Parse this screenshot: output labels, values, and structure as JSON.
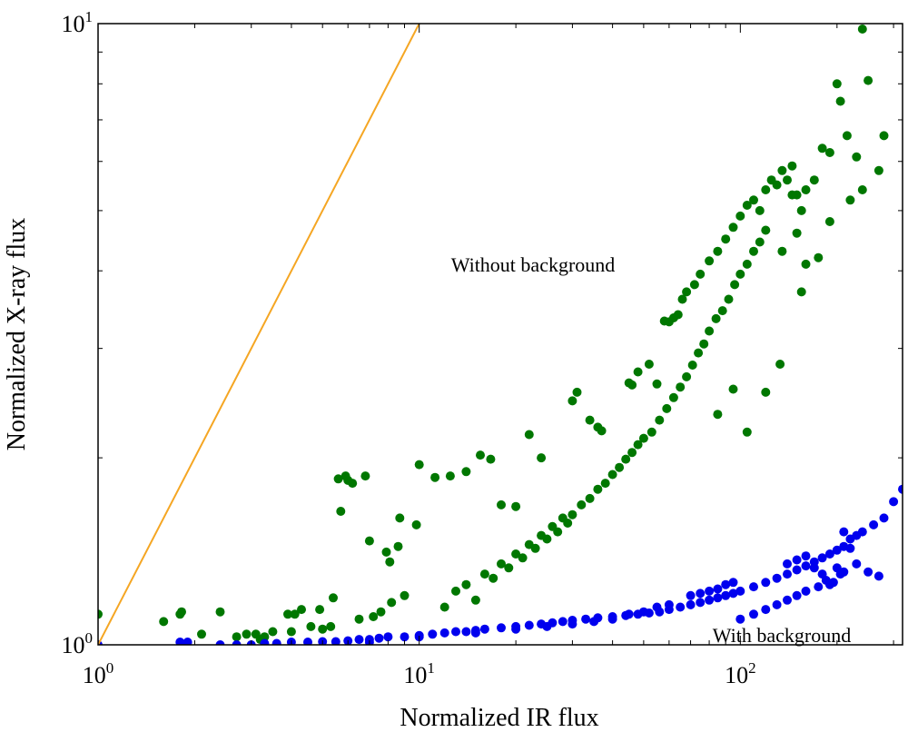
{
  "chart_data": {
    "type": "scatter",
    "xscale": "log",
    "yscale": "log",
    "xlim": [
      1,
      320
    ],
    "ylim": [
      1,
      10
    ],
    "xlabel": "Normalized IR flux",
    "ylabel": "Normalized X-ray flux",
    "x_ticks": [
      {
        "value": 1,
        "base": "10",
        "exp": "0"
      },
      {
        "value": 10,
        "base": "10",
        "exp": "1"
      },
      {
        "value": 100,
        "base": "10",
        "exp": "2"
      }
    ],
    "y_ticks": [
      {
        "value": 1,
        "base": "10",
        "exp": "0"
      },
      {
        "value": 10,
        "base": "10",
        "exp": "1"
      }
    ],
    "reference_line": {
      "color": "#f5a623",
      "x": [
        1,
        10
      ],
      "y": [
        1,
        10
      ]
    },
    "annotations": [
      {
        "name": "without-background-label",
        "text": "Without background",
        "x": 24,
        "y": 4.1
      },
      {
        "name": "with-background-label",
        "text": "With background",
        "x": 140,
        "y": 1.012
      }
    ],
    "series": [
      {
        "color": "#007700",
        "points": [
          [
            1.0,
            1.12
          ],
          [
            1.8,
            1.12
          ],
          [
            1.82,
            1.13
          ],
          [
            2.4,
            1.13
          ],
          [
            1.6,
            1.09
          ],
          [
            2.1,
            1.04
          ],
          [
            2.7,
            1.03
          ],
          [
            2.9,
            1.04
          ],
          [
            3.1,
            1.04
          ],
          [
            3.3,
            1.03
          ],
          [
            3.5,
            1.05
          ],
          [
            3.2,
            1.02
          ],
          [
            5.7,
            1.64
          ],
          [
            5.6,
            1.85
          ],
          [
            6.0,
            1.84
          ],
          [
            6.2,
            1.82
          ],
          [
            5.9,
            1.87
          ],
          [
            6.8,
            1.87
          ],
          [
            3.9,
            1.12
          ],
          [
            4.1,
            1.12
          ],
          [
            4.3,
            1.14
          ],
          [
            4.9,
            1.14
          ],
          [
            5.4,
            1.19
          ],
          [
            4.6,
            1.07
          ],
          [
            4.0,
            1.05
          ],
          [
            5.0,
            1.06
          ],
          [
            5.3,
            1.07
          ],
          [
            6.5,
            1.1
          ],
          [
            7.2,
            1.11
          ],
          [
            7.6,
            1.13
          ],
          [
            8.2,
            1.17
          ],
          [
            9.0,
            1.2
          ],
          [
            8.6,
            1.44
          ],
          [
            9.8,
            1.56
          ],
          [
            8.7,
            1.6
          ],
          [
            7.0,
            1.47
          ],
          [
            8.1,
            1.36
          ],
          [
            7.9,
            1.41
          ],
          [
            10.0,
            1.95
          ],
          [
            11.2,
            1.86
          ],
          [
            12.5,
            1.87
          ],
          [
            14.0,
            1.9
          ],
          [
            15.5,
            2.02
          ],
          [
            16.7,
            1.99
          ],
          [
            18.0,
            1.68
          ],
          [
            20.0,
            1.67
          ],
          [
            22.0,
            2.18
          ],
          [
            24.0,
            2.0
          ],
          [
            30.0,
            2.47
          ],
          [
            31.0,
            2.55
          ],
          [
            34.0,
            2.3
          ],
          [
            36.0,
            2.24
          ],
          [
            37.0,
            2.21
          ],
          [
            45.0,
            2.64
          ],
          [
            46.0,
            2.62
          ],
          [
            48.0,
            2.75
          ],
          [
            52.0,
            2.83
          ],
          [
            55.0,
            2.63
          ],
          [
            58.0,
            3.32
          ],
          [
            60.0,
            3.31
          ],
          [
            62.0,
            3.36
          ],
          [
            64.0,
            3.4
          ],
          [
            66.0,
            3.6
          ],
          [
            68.0,
            3.7
          ],
          [
            72.0,
            3.8
          ],
          [
            75.0,
            3.95
          ],
          [
            80.0,
            4.15
          ],
          [
            85.0,
            4.3
          ],
          [
            90.0,
            4.5
          ],
          [
            95.0,
            4.7
          ],
          [
            100.0,
            4.9
          ],
          [
            105.0,
            5.1
          ],
          [
            110.0,
            5.2
          ],
          [
            115.0,
            5.0
          ],
          [
            120.0,
            5.4
          ],
          [
            125.0,
            5.6
          ],
          [
            130.0,
            5.5
          ],
          [
            135.0,
            5.8
          ],
          [
            140.0,
            5.6
          ],
          [
            145.0,
            5.9
          ],
          [
            150.0,
            5.3
          ],
          [
            155.0,
            5.0
          ],
          [
            160.0,
            5.4
          ],
          [
            170.0,
            5.6
          ],
          [
            180.0,
            6.3
          ],
          [
            190.0,
            6.2
          ],
          [
            200.0,
            8.0
          ],
          [
            205.0,
            7.5
          ],
          [
            215.0,
            6.6
          ],
          [
            230.0,
            6.1
          ],
          [
            240.0,
            9.8
          ],
          [
            250.0,
            8.1
          ],
          [
            270.0,
            5.8
          ],
          [
            280.0,
            6.6
          ],
          [
            155.0,
            3.7
          ],
          [
            133.0,
            2.83
          ],
          [
            120.0,
            2.55
          ],
          [
            105.0,
            2.2
          ],
          [
            95.0,
            2.58
          ],
          [
            85.0,
            2.35
          ],
          [
            145.0,
            5.3
          ],
          [
            160.0,
            4.1
          ],
          [
            135.0,
            4.3
          ],
          [
            150.0,
            4.6
          ],
          [
            175.0,
            4.2
          ],
          [
            190.0,
            4.8
          ],
          [
            220.0,
            5.2
          ],
          [
            240.0,
            5.4
          ],
          [
            12.0,
            1.15
          ],
          [
            13.0,
            1.22
          ],
          [
            14.0,
            1.25
          ],
          [
            15.0,
            1.18
          ],
          [
            16.0,
            1.3
          ],
          [
            17.0,
            1.28
          ],
          [
            18.0,
            1.35
          ],
          [
            19.0,
            1.33
          ],
          [
            20.0,
            1.4
          ],
          [
            21.0,
            1.38
          ],
          [
            22.0,
            1.45
          ],
          [
            23.0,
            1.43
          ],
          [
            24.0,
            1.5
          ],
          [
            25.0,
            1.48
          ],
          [
            26.0,
            1.55
          ],
          [
            27.0,
            1.52
          ],
          [
            28.0,
            1.6
          ],
          [
            29.0,
            1.57
          ],
          [
            30.0,
            1.62
          ],
          [
            32.0,
            1.68
          ],
          [
            34.0,
            1.72
          ],
          [
            36.0,
            1.78
          ],
          [
            38.0,
            1.82
          ],
          [
            40.0,
            1.88
          ],
          [
            42.0,
            1.93
          ],
          [
            44.0,
            1.99
          ],
          [
            46.0,
            2.04
          ],
          [
            48.0,
            2.1
          ],
          [
            50.0,
            2.15
          ],
          [
            53.0,
            2.2
          ],
          [
            56.0,
            2.3
          ],
          [
            59.0,
            2.4
          ],
          [
            62.0,
            2.5
          ],
          [
            65.0,
            2.6
          ],
          [
            68.0,
            2.7
          ],
          [
            71.0,
            2.82
          ],
          [
            74.0,
            2.95
          ],
          [
            77.0,
            3.05
          ],
          [
            80.0,
            3.2
          ],
          [
            84.0,
            3.35
          ],
          [
            88.0,
            3.45
          ],
          [
            92.0,
            3.6
          ],
          [
            96.0,
            3.8
          ],
          [
            100.0,
            3.95
          ],
          [
            105.0,
            4.1
          ],
          [
            110.0,
            4.3
          ],
          [
            115.0,
            4.45
          ],
          [
            120.0,
            4.65
          ]
        ]
      },
      {
        "color": "#0000ee",
        "points": [
          [
            1.0,
            1.0
          ],
          [
            1.8,
            1.01
          ],
          [
            1.9,
            1.01
          ],
          [
            2.4,
            1.0
          ],
          [
            2.7,
            1.0
          ],
          [
            3.0,
            1.0
          ],
          [
            3.3,
            1.005
          ],
          [
            3.6,
            1.005
          ],
          [
            4.0,
            1.01
          ],
          [
            4.5,
            1.01
          ],
          [
            5.0,
            1.012
          ],
          [
            5.5,
            1.012
          ],
          [
            6.0,
            1.015
          ],
          [
            6.5,
            1.02
          ],
          [
            7.0,
            1.02
          ],
          [
            7.5,
            1.025
          ],
          [
            8.0,
            1.03
          ],
          [
            9.0,
            1.03
          ],
          [
            10.0,
            1.035
          ],
          [
            11.0,
            1.04
          ],
          [
            12.0,
            1.045
          ],
          [
            13.0,
            1.05
          ],
          [
            14.0,
            1.05
          ],
          [
            15.0,
            1.055
          ],
          [
            16.0,
            1.06
          ],
          [
            18.0,
            1.065
          ],
          [
            20.0,
            1.07
          ],
          [
            22.0,
            1.075
          ],
          [
            24.0,
            1.08
          ],
          [
            26.0,
            1.085
          ],
          [
            28.0,
            1.09
          ],
          [
            30.0,
            1.095
          ],
          [
            33.0,
            1.1
          ],
          [
            36.0,
            1.105
          ],
          [
            40.0,
            1.11
          ],
          [
            44.0,
            1.115
          ],
          [
            48.0,
            1.12
          ],
          [
            52.0,
            1.125
          ],
          [
            56.0,
            1.13
          ],
          [
            60.0,
            1.14
          ],
          [
            65.0,
            1.15
          ],
          [
            70.0,
            1.16
          ],
          [
            75.0,
            1.17
          ],
          [
            80.0,
            1.18
          ],
          [
            85.0,
            1.19
          ],
          [
            90.0,
            1.2
          ],
          [
            95.0,
            1.21
          ],
          [
            100.0,
            1.22
          ],
          [
            110.0,
            1.24
          ],
          [
            120.0,
            1.26
          ],
          [
            130.0,
            1.28
          ],
          [
            140.0,
            1.3
          ],
          [
            150.0,
            1.32
          ],
          [
            160.0,
            1.34
          ],
          [
            170.0,
            1.36
          ],
          [
            180.0,
            1.38
          ],
          [
            190.0,
            1.4
          ],
          [
            200.0,
            1.42
          ],
          [
            210.0,
            1.44
          ],
          [
            220.0,
            1.48
          ],
          [
            230.0,
            1.5
          ],
          [
            240.0,
            1.52
          ],
          [
            260.0,
            1.56
          ],
          [
            280.0,
            1.6
          ],
          [
            300.0,
            1.7
          ],
          [
            320.0,
            1.78
          ],
          [
            200.0,
            1.33
          ],
          [
            210.0,
            1.31
          ],
          [
            230.0,
            1.35
          ],
          [
            250.0,
            1.31
          ],
          [
            270.0,
            1.29
          ],
          [
            190.0,
            1.25
          ],
          [
            100.0,
            1.1
          ],
          [
            110.0,
            1.12
          ],
          [
            120.0,
            1.14
          ],
          [
            130.0,
            1.16
          ],
          [
            140.0,
            1.18
          ],
          [
            150.0,
            1.2
          ],
          [
            160.0,
            1.22
          ],
          [
            175.0,
            1.24
          ],
          [
            185.0,
            1.27
          ],
          [
            195.0,
            1.26
          ],
          [
            205.0,
            1.3
          ],
          [
            140.0,
            1.35
          ],
          [
            150.0,
            1.37
          ],
          [
            160.0,
            1.39
          ],
          [
            170.0,
            1.33
          ],
          [
            180.0,
            1.3
          ],
          [
            210.0,
            1.52
          ],
          [
            220.0,
            1.43
          ],
          [
            60.0,
            1.16
          ],
          [
            55.0,
            1.15
          ],
          [
            50.0,
            1.13
          ],
          [
            45.0,
            1.12
          ],
          [
            40.0,
            1.1
          ],
          [
            35.0,
            1.09
          ],
          [
            30.0,
            1.08
          ],
          [
            25.0,
            1.07
          ],
          [
            20.0,
            1.06
          ],
          [
            15.0,
            1.045
          ],
          [
            10.0,
            1.03
          ],
          [
            7.0,
            1.01
          ],
          [
            70.0,
            1.2
          ],
          [
            75.0,
            1.21
          ],
          [
            80.0,
            1.22
          ],
          [
            85.0,
            1.23
          ],
          [
            90.0,
            1.25
          ],
          [
            95.0,
            1.26
          ]
        ]
      }
    ]
  }
}
